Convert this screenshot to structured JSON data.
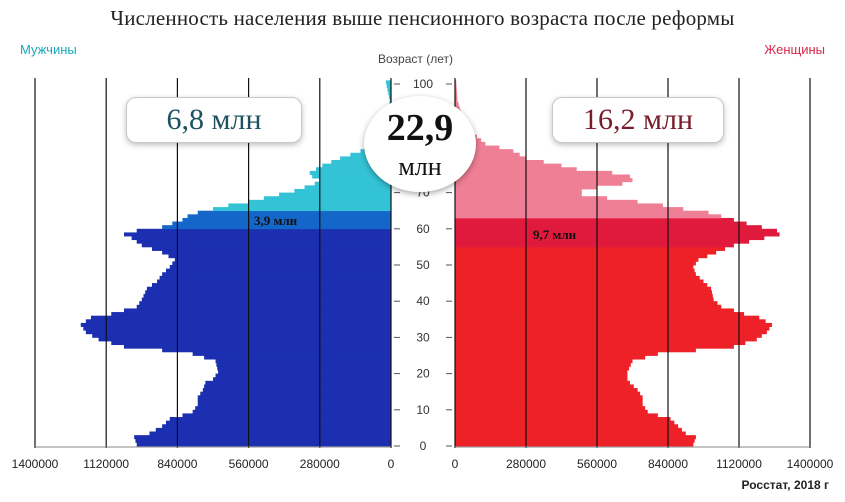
{
  "title": "Численность населения выше пенсионного возраста после реформы",
  "men_label": "Мужчины",
  "women_label": "Женщины",
  "age_label": "Возраст (лет)",
  "source": "Росстат, 2018 г",
  "men_total": "6,8 млн",
  "women_total": "16,2 млн",
  "total_value": "22,9",
  "total_unit": "млн",
  "men_band_label": "3,9 млн",
  "women_band_label": "9,7 млн",
  "colors": {
    "men_main": "#1b2fb0",
    "men_band": "#1466c9",
    "men_over": "#33c3d6",
    "women_main": "#ee2128",
    "women_band": "#e01a3c",
    "women_over": "#ee7f95"
  },
  "chart_data": {
    "type": "bar",
    "orientation": "horizontal-population-pyramid",
    "age_ticks": [
      0,
      10,
      20,
      30,
      40,
      50,
      60,
      70,
      80,
      90,
      100
    ],
    "age_range": [
      0,
      100
    ],
    "men_axis_ticks": [
      "1400000",
      "1120000",
      "840000",
      "560000",
      "280000",
      "0"
    ],
    "women_axis_ticks": [
      "0",
      "280000",
      "560000",
      "840000",
      "1120000",
      "1400000"
    ],
    "value_range": [
      0,
      1400000
    ],
    "men_band_ages": [
      60,
      64
    ],
    "women_band_ages": [
      55,
      62
    ],
    "series": [
      {
        "name": "Мужчины",
        "age_value_points": [
          [
            0,
            1000000
          ],
          [
            2,
            1010000
          ],
          [
            3,
            950000
          ],
          [
            5,
            900000
          ],
          [
            7,
            870000
          ],
          [
            8,
            820000
          ],
          [
            9,
            780000
          ],
          [
            11,
            760000
          ],
          [
            13,
            760000
          ],
          [
            15,
            740000
          ],
          [
            17,
            730000
          ],
          [
            18,
            700000
          ],
          [
            20,
            680000
          ],
          [
            23,
            690000
          ],
          [
            25,
            780000
          ],
          [
            26,
            900000
          ],
          [
            27,
            1050000
          ],
          [
            29,
            1150000
          ],
          [
            31,
            1200000
          ],
          [
            33,
            1220000
          ],
          [
            35,
            1180000
          ],
          [
            36,
            1100000
          ],
          [
            37,
            1050000
          ],
          [
            38,
            1000000
          ],
          [
            40,
            980000
          ],
          [
            43,
            960000
          ],
          [
            45,
            920000
          ],
          [
            47,
            900000
          ],
          [
            49,
            870000
          ],
          [
            51,
            850000
          ],
          [
            53,
            900000
          ],
          [
            55,
            980000
          ],
          [
            57,
            1020000
          ],
          [
            58,
            1050000
          ],
          [
            59,
            1000000
          ],
          [
            60,
            900000
          ],
          [
            61,
            860000
          ],
          [
            62,
            820000
          ],
          [
            63,
            800000
          ],
          [
            64,
            760000
          ],
          [
            65,
            700000
          ],
          [
            66,
            640000
          ],
          [
            67,
            560000
          ],
          [
            68,
            500000
          ],
          [
            69,
            440000
          ],
          [
            70,
            380000
          ],
          [
            72,
            300000
          ],
          [
            73,
            280000
          ],
          [
            74,
            310000
          ],
          [
            75,
            320000
          ],
          [
            77,
            270000
          ],
          [
            79,
            200000
          ],
          [
            81,
            120000
          ],
          [
            83,
            80000
          ],
          [
            86,
            40000
          ],
          [
            90,
            15000
          ],
          [
            95,
            5000
          ],
          [
            100,
            20000
          ]
        ]
      },
      {
        "name": "Женщины",
        "age_value_points": [
          [
            0,
            940000
          ],
          [
            2,
            950000
          ],
          [
            3,
            910000
          ],
          [
            5,
            880000
          ],
          [
            7,
            850000
          ],
          [
            8,
            800000
          ],
          [
            9,
            760000
          ],
          [
            11,
            740000
          ],
          [
            13,
            740000
          ],
          [
            15,
            720000
          ],
          [
            17,
            690000
          ],
          [
            18,
            680000
          ],
          [
            20,
            680000
          ],
          [
            23,
            700000
          ],
          [
            25,
            800000
          ],
          [
            26,
            950000
          ],
          [
            27,
            1100000
          ],
          [
            29,
            1190000
          ],
          [
            31,
            1230000
          ],
          [
            33,
            1250000
          ],
          [
            35,
            1200000
          ],
          [
            36,
            1140000
          ],
          [
            37,
            1100000
          ],
          [
            38,
            1050000
          ],
          [
            40,
            1020000
          ],
          [
            43,
            1010000
          ],
          [
            45,
            980000
          ],
          [
            47,
            950000
          ],
          [
            49,
            940000
          ],
          [
            51,
            960000
          ],
          [
            53,
            1030000
          ],
          [
            55,
            1100000
          ],
          [
            57,
            1220000
          ],
          [
            58,
            1280000
          ],
          [
            59,
            1270000
          ],
          [
            60,
            1210000
          ],
          [
            61,
            1150000
          ],
          [
            62,
            1100000
          ],
          [
            63,
            1050000
          ],
          [
            64,
            1000000
          ],
          [
            65,
            900000
          ],
          [
            66,
            820000
          ],
          [
            67,
            720000
          ],
          [
            68,
            600000
          ],
          [
            69,
            500000
          ],
          [
            70,
            500000
          ],
          [
            71,
            560000
          ],
          [
            72,
            660000
          ],
          [
            73,
            700000
          ],
          [
            74,
            690000
          ],
          [
            75,
            620000
          ],
          [
            76,
            480000
          ],
          [
            77,
            420000
          ],
          [
            79,
            280000
          ],
          [
            81,
            230000
          ],
          [
            83,
            120000
          ],
          [
            86,
            70000
          ],
          [
            90,
            30000
          ],
          [
            95,
            10000
          ],
          [
            100,
            5000
          ]
        ]
      }
    ]
  }
}
